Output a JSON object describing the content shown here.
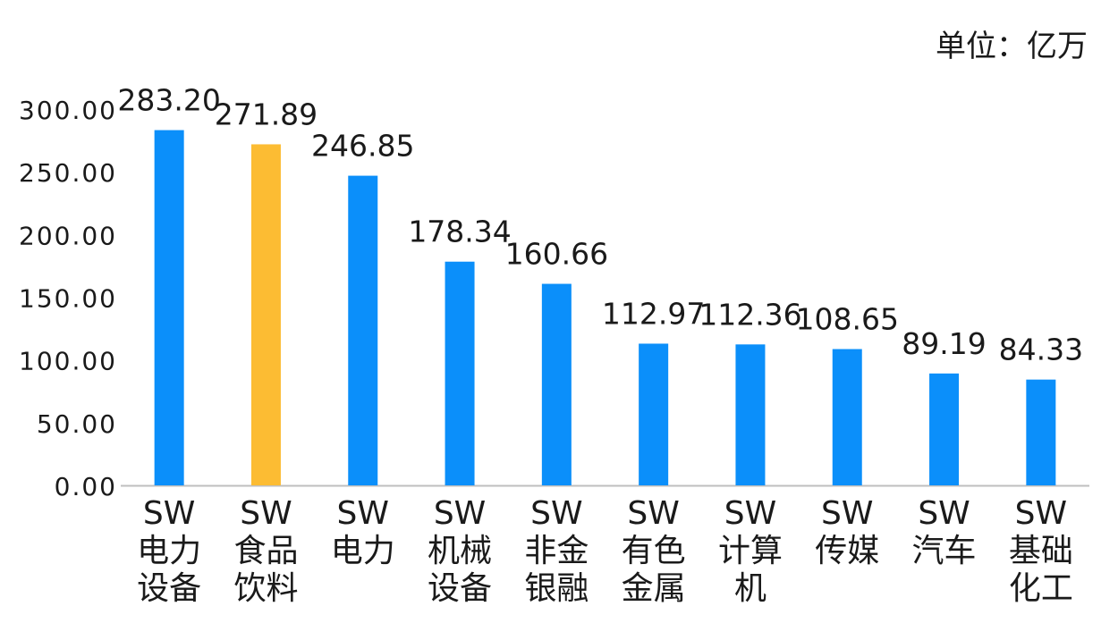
{
  "unit_label": "单位：亿万",
  "chart_data": {
    "type": "bar",
    "title": "",
    "xlabel": "",
    "ylabel": "",
    "ylim": [
      0,
      300
    ],
    "yticks": [
      "0.00",
      "50.00",
      "100.00",
      "150.00",
      "200.00",
      "250.00",
      "300.00"
    ],
    "categories": [
      [
        "SW",
        "电力",
        "设备"
      ],
      [
        "SW",
        "食品",
        "饮料"
      ],
      [
        "SW",
        "电力"
      ],
      [
        "SW",
        "机械",
        "设备"
      ],
      [
        "SW",
        "非金",
        "银融"
      ],
      [
        "SW",
        "有色",
        "金属"
      ],
      [
        "SW",
        "计算",
        "机"
      ],
      [
        "SW",
        "传媒"
      ],
      [
        "SW",
        "汽车"
      ],
      [
        "SW",
        "基础",
        "化工"
      ]
    ],
    "values": [
      283.2,
      271.89,
      246.85,
      178.34,
      160.66,
      112.97,
      112.36,
      108.65,
      89.19,
      84.33
    ],
    "value_labels": [
      "283.20",
      "271.89",
      "246.85",
      "178.34",
      "160.66",
      "112.97",
      "112.36",
      "108.65",
      "89.19",
      "84.33"
    ],
    "colors": {
      "default": "#0b8ffa",
      "highlight": "#fcbc33",
      "axis": "#bfbfbf"
    },
    "highlight_index": 1,
    "grid": false,
    "legend": "none"
  }
}
